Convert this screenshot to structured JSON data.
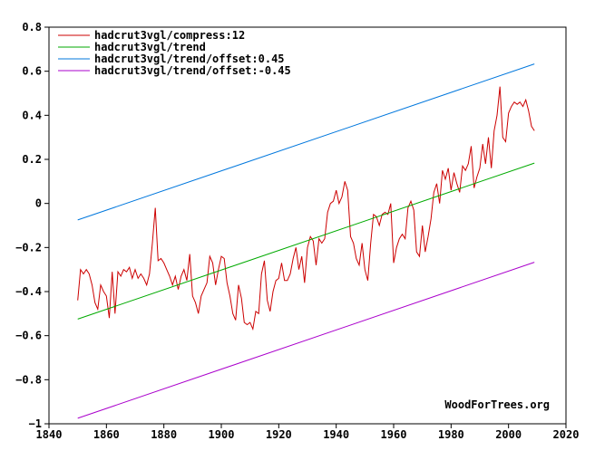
{
  "chart_data": {
    "type": "line",
    "title": "",
    "xlabel": "",
    "ylabel": "",
    "xlim": [
      1840,
      2020
    ],
    "ylim": [
      -1,
      0.8
    ],
    "x_ticks": [
      1840,
      1860,
      1880,
      1900,
      1920,
      1940,
      1960,
      1980,
      2000,
      2020
    ],
    "y_ticks": [
      -1,
      -0.8,
      -0.6,
      -0.4,
      -0.2,
      0,
      0.2,
      0.4,
      0.6,
      0.8
    ],
    "y_tick_labels": [
      "−1",
      "−0.8",
      "−0.6",
      "−0.4",
      "−0.2",
      "0",
      "0.2",
      "0.4",
      "0.6",
      "0.8"
    ],
    "grid": false,
    "legend_position": "top-left",
    "watermark": "WoodForTrees.org",
    "series": [
      {
        "name": "hadcrut3vgl/compress:12",
        "color": "#cc0000",
        "points": [
          [
            1850,
            -0.44
          ],
          [
            1851,
            -0.3
          ],
          [
            1852,
            -0.32
          ],
          [
            1853,
            -0.3
          ],
          [
            1854,
            -0.32
          ],
          [
            1855,
            -0.37
          ],
          [
            1856,
            -0.45
          ],
          [
            1857,
            -0.48
          ],
          [
            1858,
            -0.37
          ],
          [
            1859,
            -0.4
          ],
          [
            1860,
            -0.42
          ],
          [
            1861,
            -0.52
          ],
          [
            1862,
            -0.31
          ],
          [
            1863,
            -0.5
          ],
          [
            1864,
            -0.31
          ],
          [
            1865,
            -0.33
          ],
          [
            1866,
            -0.3
          ],
          [
            1867,
            -0.31
          ],
          [
            1868,
            -0.29
          ],
          [
            1869,
            -0.34
          ],
          [
            1870,
            -0.3
          ],
          [
            1871,
            -0.34
          ],
          [
            1872,
            -0.32
          ],
          [
            1873,
            -0.34
          ],
          [
            1874,
            -0.37
          ],
          [
            1875,
            -0.32
          ],
          [
            1876,
            -0.18
          ],
          [
            1877,
            -0.02
          ],
          [
            1878,
            -0.26
          ],
          [
            1879,
            -0.25
          ],
          [
            1880,
            -0.27
          ],
          [
            1881,
            -0.3
          ],
          [
            1882,
            -0.33
          ],
          [
            1883,
            -0.37
          ],
          [
            1884,
            -0.33
          ],
          [
            1885,
            -0.39
          ],
          [
            1886,
            -0.33
          ],
          [
            1887,
            -0.3
          ],
          [
            1888,
            -0.35
          ],
          [
            1889,
            -0.23
          ],
          [
            1890,
            -0.42
          ],
          [
            1891,
            -0.45
          ],
          [
            1892,
            -0.5
          ],
          [
            1893,
            -0.42
          ],
          [
            1894,
            -0.39
          ],
          [
            1895,
            -0.36
          ],
          [
            1896,
            -0.24
          ],
          [
            1897,
            -0.27
          ],
          [
            1898,
            -0.37
          ],
          [
            1899,
            -0.3
          ],
          [
            1900,
            -0.24
          ],
          [
            1901,
            -0.25
          ],
          [
            1902,
            -0.36
          ],
          [
            1903,
            -0.42
          ],
          [
            1904,
            -0.5
          ],
          [
            1905,
            -0.53
          ],
          [
            1906,
            -0.37
          ],
          [
            1907,
            -0.43
          ],
          [
            1908,
            -0.54
          ],
          [
            1909,
            -0.55
          ],
          [
            1910,
            -0.54
          ],
          [
            1911,
            -0.57
          ],
          [
            1912,
            -0.49
          ],
          [
            1913,
            -0.5
          ],
          [
            1914,
            -0.32
          ],
          [
            1915,
            -0.26
          ],
          [
            1916,
            -0.44
          ],
          [
            1917,
            -0.49
          ],
          [
            1918,
            -0.4
          ],
          [
            1919,
            -0.35
          ],
          [
            1920,
            -0.34
          ],
          [
            1921,
            -0.27
          ],
          [
            1922,
            -0.35
          ],
          [
            1923,
            -0.35
          ],
          [
            1924,
            -0.32
          ],
          [
            1925,
            -0.25
          ],
          [
            1926,
            -0.2
          ],
          [
            1927,
            -0.3
          ],
          [
            1928,
            -0.24
          ],
          [
            1929,
            -0.36
          ],
          [
            1930,
            -0.2
          ],
          [
            1931,
            -0.15
          ],
          [
            1932,
            -0.17
          ],
          [
            1933,
            -0.28
          ],
          [
            1934,
            -0.16
          ],
          [
            1935,
            -0.18
          ],
          [
            1936,
            -0.16
          ],
          [
            1937,
            -0.04
          ],
          [
            1938,
            0.0
          ],
          [
            1939,
            0.01
          ],
          [
            1940,
            0.06
          ],
          [
            1941,
            0.0
          ],
          [
            1942,
            0.03
          ],
          [
            1943,
            0.1
          ],
          [
            1944,
            0.06
          ],
          [
            1945,
            -0.15
          ],
          [
            1946,
            -0.18
          ],
          [
            1947,
            -0.25
          ],
          [
            1948,
            -0.28
          ],
          [
            1949,
            -0.18
          ],
          [
            1950,
            -0.3
          ],
          [
            1951,
            -0.35
          ],
          [
            1952,
            -0.18
          ],
          [
            1953,
            -0.05
          ],
          [
            1954,
            -0.06
          ],
          [
            1955,
            -0.1
          ],
          [
            1956,
            -0.05
          ],
          [
            1957,
            -0.04
          ],
          [
            1958,
            -0.05
          ],
          [
            1959,
            0.0
          ],
          [
            1960,
            -0.27
          ],
          [
            1961,
            -0.2
          ],
          [
            1962,
            -0.16
          ],
          [
            1963,
            -0.14
          ],
          [
            1964,
            -0.16
          ],
          [
            1965,
            -0.02
          ],
          [
            1966,
            0.01
          ],
          [
            1967,
            -0.03
          ],
          [
            1968,
            -0.22
          ],
          [
            1969,
            -0.24
          ],
          [
            1970,
            -0.1
          ],
          [
            1971,
            -0.22
          ],
          [
            1972,
            -0.15
          ],
          [
            1973,
            -0.07
          ],
          [
            1974,
            0.05
          ],
          [
            1975,
            0.09
          ],
          [
            1976,
            0.0
          ],
          [
            1977,
            0.15
          ],
          [
            1978,
            0.11
          ],
          [
            1979,
            0.16
          ],
          [
            1980,
            0.06
          ],
          [
            1981,
            0.14
          ],
          [
            1982,
            0.09
          ],
          [
            1983,
            0.05
          ],
          [
            1984,
            0.17
          ],
          [
            1985,
            0.15
          ],
          [
            1986,
            0.18
          ],
          [
            1987,
            0.26
          ],
          [
            1988,
            0.07
          ],
          [
            1989,
            0.12
          ],
          [
            1990,
            0.16
          ],
          [
            1991,
            0.27
          ],
          [
            1992,
            0.18
          ],
          [
            1993,
            0.3
          ],
          [
            1994,
            0.16
          ],
          [
            1995,
            0.33
          ],
          [
            1996,
            0.4
          ],
          [
            1997,
            0.53
          ],
          [
            1998,
            0.3
          ],
          [
            1999,
            0.28
          ],
          [
            2000,
            0.41
          ],
          [
            2001,
            0.44
          ],
          [
            2002,
            0.46
          ],
          [
            2003,
            0.45
          ],
          [
            2004,
            0.46
          ],
          [
            2005,
            0.44
          ],
          [
            2006,
            0.47
          ],
          [
            2007,
            0.42
          ],
          [
            2008,
            0.35
          ],
          [
            2009,
            0.33
          ]
        ]
      },
      {
        "name": "hadcrut3vgl/trend",
        "color": "#00aa00",
        "points": [
          [
            1850,
            -0.525
          ],
          [
            2009,
            0.183
          ]
        ]
      },
      {
        "name": "hadcrut3vgl/trend/offset:0.45",
        "color": "#0077dd",
        "points": [
          [
            1850,
            -0.075
          ],
          [
            2009,
            0.633
          ]
        ]
      },
      {
        "name": "hadcrut3vgl/trend/offset:-0.45",
        "color": "#aa00cc",
        "points": [
          [
            1850,
            -0.975
          ],
          [
            2009,
            -0.267
          ]
        ]
      }
    ]
  }
}
